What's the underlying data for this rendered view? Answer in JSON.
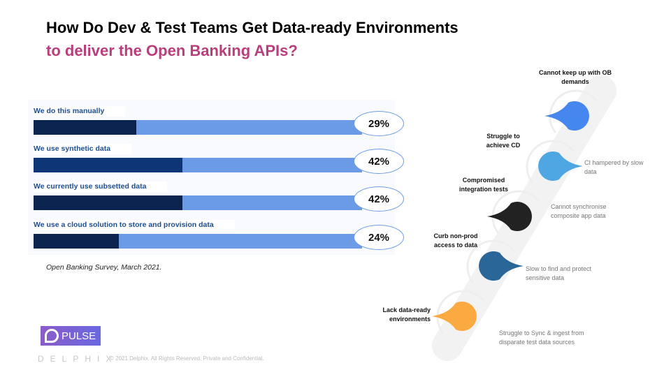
{
  "title": {
    "line1": "How Do Dev & Test Teams Get Data-ready Environments",
    "line2": "to deliver the Open Banking APIs?"
  },
  "chart_data": {
    "type": "bar",
    "categories": [
      "We do this manually",
      "We use synthetic data",
      "We currently use subsetted data",
      "We use a cloud solution to store and provision data"
    ],
    "values": [
      29,
      42,
      42,
      24
    ],
    "labels": [
      "29%",
      "42%",
      "42%",
      "24%"
    ],
    "fill_colors": [
      "#0b244f",
      "#0e3677",
      "#0b244f",
      "#0b244f"
    ],
    "track_color": "#6b9be6",
    "ylim": [
      0,
      100
    ]
  },
  "source": "Open Banking Survey, March 2021.",
  "flow": {
    "steps": [
      {
        "left_label": "Lack data-ready environments",
        "right_label": "Struggle to Sync & ingest from disparate test data sources",
        "color": "#fbaa42"
      },
      {
        "left_label": "Curb non-prod access to data",
        "right_label": "Slow to find and protect sensitive data",
        "color": "#2b6699"
      },
      {
        "left_label": "Compromised integration tests",
        "right_label": "Cannot synchronise composite app data",
        "color": "#222222"
      },
      {
        "left_label": "Struggle to achieve CD",
        "right_label": "CI hampered by slow data",
        "color": "#4ea7e3"
      },
      {
        "left_label": "Cannot keep up with OB demands",
        "right_label": "",
        "color": "#4586ef"
      }
    ]
  },
  "footer": {
    "pulse": "PULSE",
    "brand": "DELPHIX",
    "copyright": "© 2021 Delphix. All Rights Reserved. Private and Confidential."
  }
}
